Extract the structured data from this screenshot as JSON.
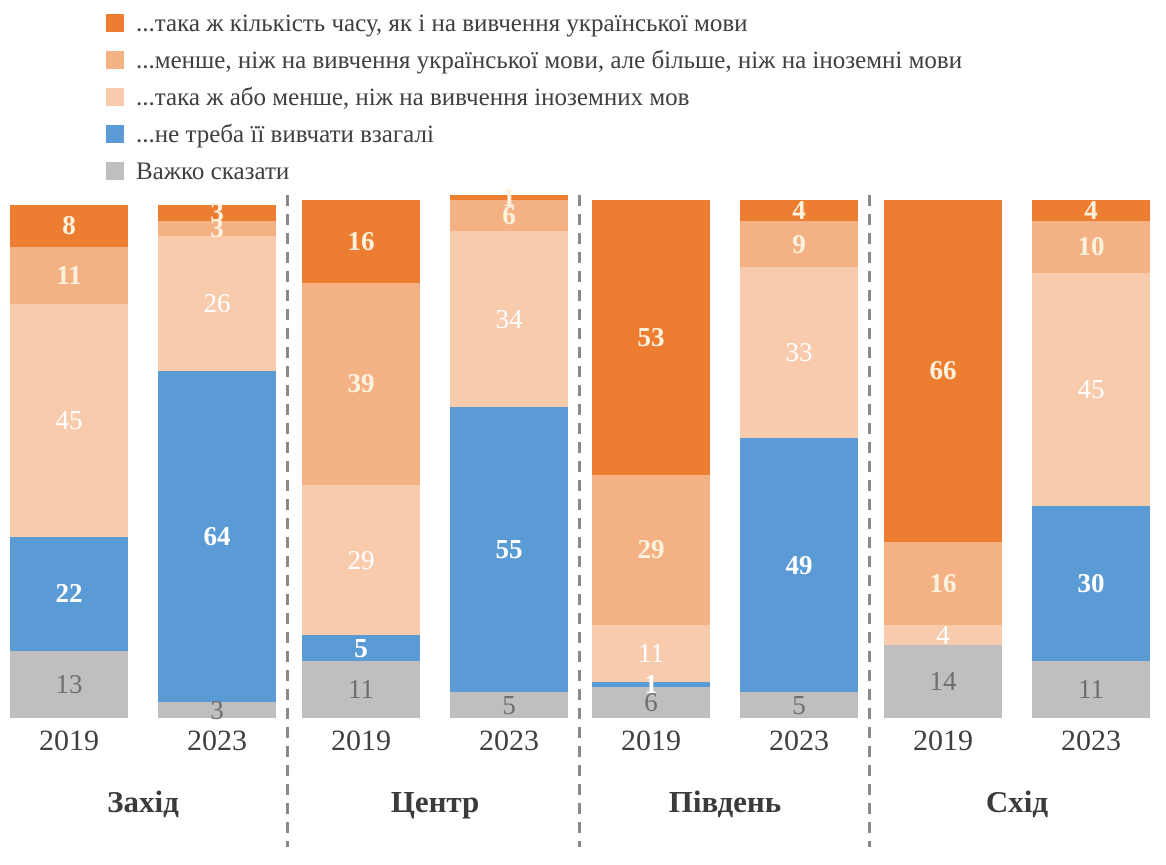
{
  "legend": {
    "items": [
      {
        "label": "...така ж кількість часу, як і на вивчення української мови",
        "color": "#ED7D31"
      },
      {
        "label": "...менше, ніж на вивчення української мови, але більше, ніж на іноземні мови",
        "color": "#F4B183"
      },
      {
        "label": "...така ж або менше, ніж на вивчення іноземних мов",
        "color": "#F8CBAD"
      },
      {
        "label": "...не треба її вивчати взагалі",
        "color": "#5B9BD5"
      },
      {
        "label": "Важко сказати",
        "color": "#BFBFBF"
      }
    ]
  },
  "chart_data": {
    "type": "bar",
    "subtype": "stacked-column",
    "unit": "percent",
    "ylim": [
      0,
      100
    ],
    "legend_position": "top-left",
    "series_labels": [
      "...така ж кількість часу, як і на вивчення української мови",
      "...менше, ніж на вивчення української мови, але більше, ніж на іноземні мови",
      "...така ж або менше, ніж на вивчення іноземних мов",
      "...не треба її вивчати взагалі",
      "Важко сказати"
    ],
    "colors": [
      "#ED7D31",
      "#F4B183",
      "#F8CBAD",
      "#5B9BD5",
      "#BFBFBF"
    ],
    "values_order": "top-to-bottom",
    "regions": [
      {
        "name": "Захід",
        "bars": [
          {
            "year": "2019",
            "values": [
              8,
              11,
              45,
              22,
              13
            ]
          },
          {
            "year": "2023",
            "values": [
              3,
              3,
              26,
              64,
              3
            ]
          }
        ]
      },
      {
        "name": "Центр",
        "bars": [
          {
            "year": "2019",
            "values": [
              16,
              39,
              29,
              5,
              11
            ]
          },
          {
            "year": "2023",
            "values": [
              1,
              6,
              34,
              55,
              5
            ]
          }
        ]
      },
      {
        "name": "Південь",
        "bars": [
          {
            "year": "2019",
            "values": [
              53,
              29,
              11,
              1,
              6
            ]
          },
          {
            "year": "2023",
            "values": [
              4,
              9,
              33,
              49,
              5
            ]
          }
        ]
      },
      {
        "name": "Схід",
        "bars": [
          {
            "year": "2019",
            "values": [
              66,
              16,
              4,
              0,
              14
            ]
          },
          {
            "year": "2023",
            "values": [
              4,
              10,
              45,
              30,
              11
            ]
          }
        ]
      }
    ]
  },
  "style": {
    "segment_label_colors": [
      "#FBF2DD",
      "#FBF2DD",
      "#FFFFFF",
      "#FFFFFF",
      "#6E6E6E"
    ],
    "segment_label_bold": [
      true,
      true,
      false,
      true,
      false
    ],
    "divider_color": "#8A8A8A",
    "axis_text_color": "#404040"
  }
}
